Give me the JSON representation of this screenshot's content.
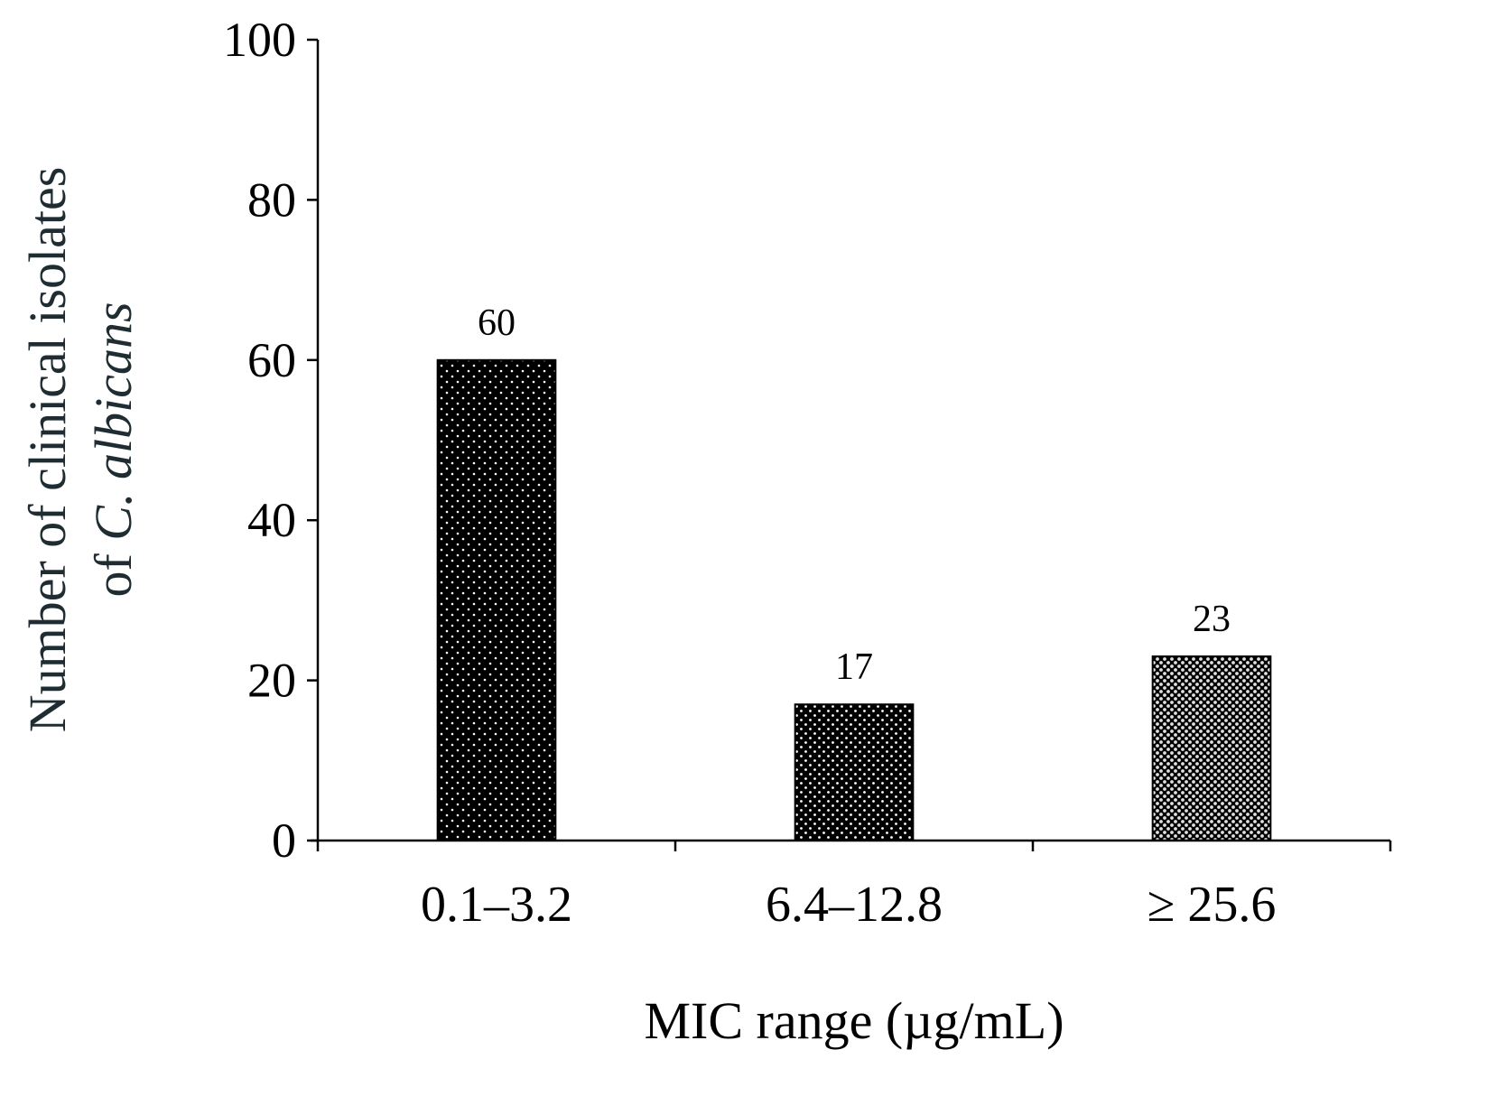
{
  "chart_data": {
    "type": "bar",
    "title": "",
    "categories": [
      "0.1–3.2",
      "6.4–12.8",
      "≥ 25.6"
    ],
    "values": [
      60,
      17,
      23
    ],
    "data_labels": [
      "60",
      "17",
      "23"
    ],
    "ylim": [
      0,
      100
    ],
    "yticks": [
      0,
      20,
      40,
      60,
      80,
      100
    ],
    "ytick_labels": [
      "0",
      "20",
      "40",
      "60",
      "80",
      "100"
    ],
    "xlabel": "MIC range (µg/mL)",
    "ylabel": {
      "line1": "Number of clinical isolates",
      "line2_prefix": "of ",
      "line2_species": "C. albicans"
    },
    "grid": false,
    "legend": "none",
    "colors": {
      "axis": "#000000",
      "bar_fill": "#000000",
      "pattern_dots": [
        "#ffffff",
        "#ffffff",
        "#d9d9d9"
      ],
      "ylabel_text": "#1f2d33"
    }
  }
}
